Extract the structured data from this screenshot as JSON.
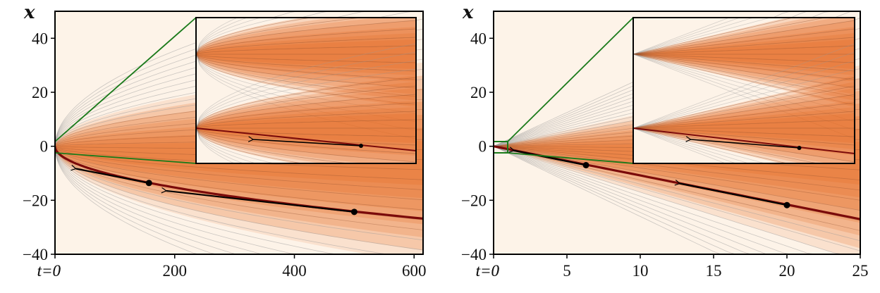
{
  "colors": {
    "background": "#fdf3e8",
    "density": "#e5621a",
    "trajectory": "#7a0a0a",
    "guide": "#999999",
    "zoom_box": "#1a7a1a",
    "arrow": "#000000"
  },
  "chart_data": [
    {
      "type": "line",
      "ylabel": "x",
      "origin_tick_label": "t=0",
      "xlim": [
        0,
        615
      ],
      "ylim": [
        -40,
        50
      ],
      "xticks": [
        0,
        200,
        400,
        600
      ],
      "xtick_labels": [
        "t=0",
        "200",
        "400",
        "600"
      ],
      "yticks": [
        40,
        20,
        0,
        -20,
        -40
      ],
      "ytick_labels": [
        "40",
        "20",
        "0",
        "−20",
        "−40"
      ],
      "grid": false,
      "trajectory": {
        "model": "sqrt",
        "coef": -1.08
      },
      "points": [
        {
          "t": 500,
          "x": -24.3
        },
        {
          "t": 157,
          "x": -13.6
        }
      ],
      "arrows": [
        {
          "from": [
            500,
            -24.3
          ],
          "to": [
            186,
            -16.5
          ]
        },
        {
          "from": [
            157,
            -13.6
          ],
          "to": [
            35,
            -8.3
          ]
        }
      ],
      "inset": {
        "zoomed_region": {
          "t": [
            0,
            0
          ],
          "x": [
            -2,
            2
          ]
        }
      }
    },
    {
      "type": "line",
      "ylabel": "x",
      "origin_tick_label": "t=0",
      "xlim": [
        0,
        25
      ],
      "ylim": [
        -40,
        50
      ],
      "xticks": [
        0,
        5,
        10,
        15,
        20,
        25
      ],
      "xtick_labels": [
        "t=0",
        "5",
        "10",
        "15",
        "20",
        "25"
      ],
      "yticks": [
        40,
        20,
        0,
        -20,
        -40
      ],
      "ytick_labels": [
        "40",
        "20",
        "0",
        "−20",
        "−40"
      ],
      "grid": false,
      "trajectory": {
        "model": "linear",
        "coef": -1.08
      },
      "points": [
        {
          "t": 20,
          "x": -21.8
        },
        {
          "t": 6.3,
          "x": -7.0
        }
      ],
      "arrows": [
        {
          "from": [
            20,
            -21.8
          ],
          "to": [
            12.7,
            -13.8
          ]
        },
        {
          "from": [
            6.3,
            -7.0
          ],
          "to": [
            1.4,
            -1.6
          ]
        }
      ],
      "inset": {
        "zoomed_region": {
          "t": [
            0,
            1
          ],
          "x": [
            -2,
            2
          ]
        }
      }
    }
  ]
}
